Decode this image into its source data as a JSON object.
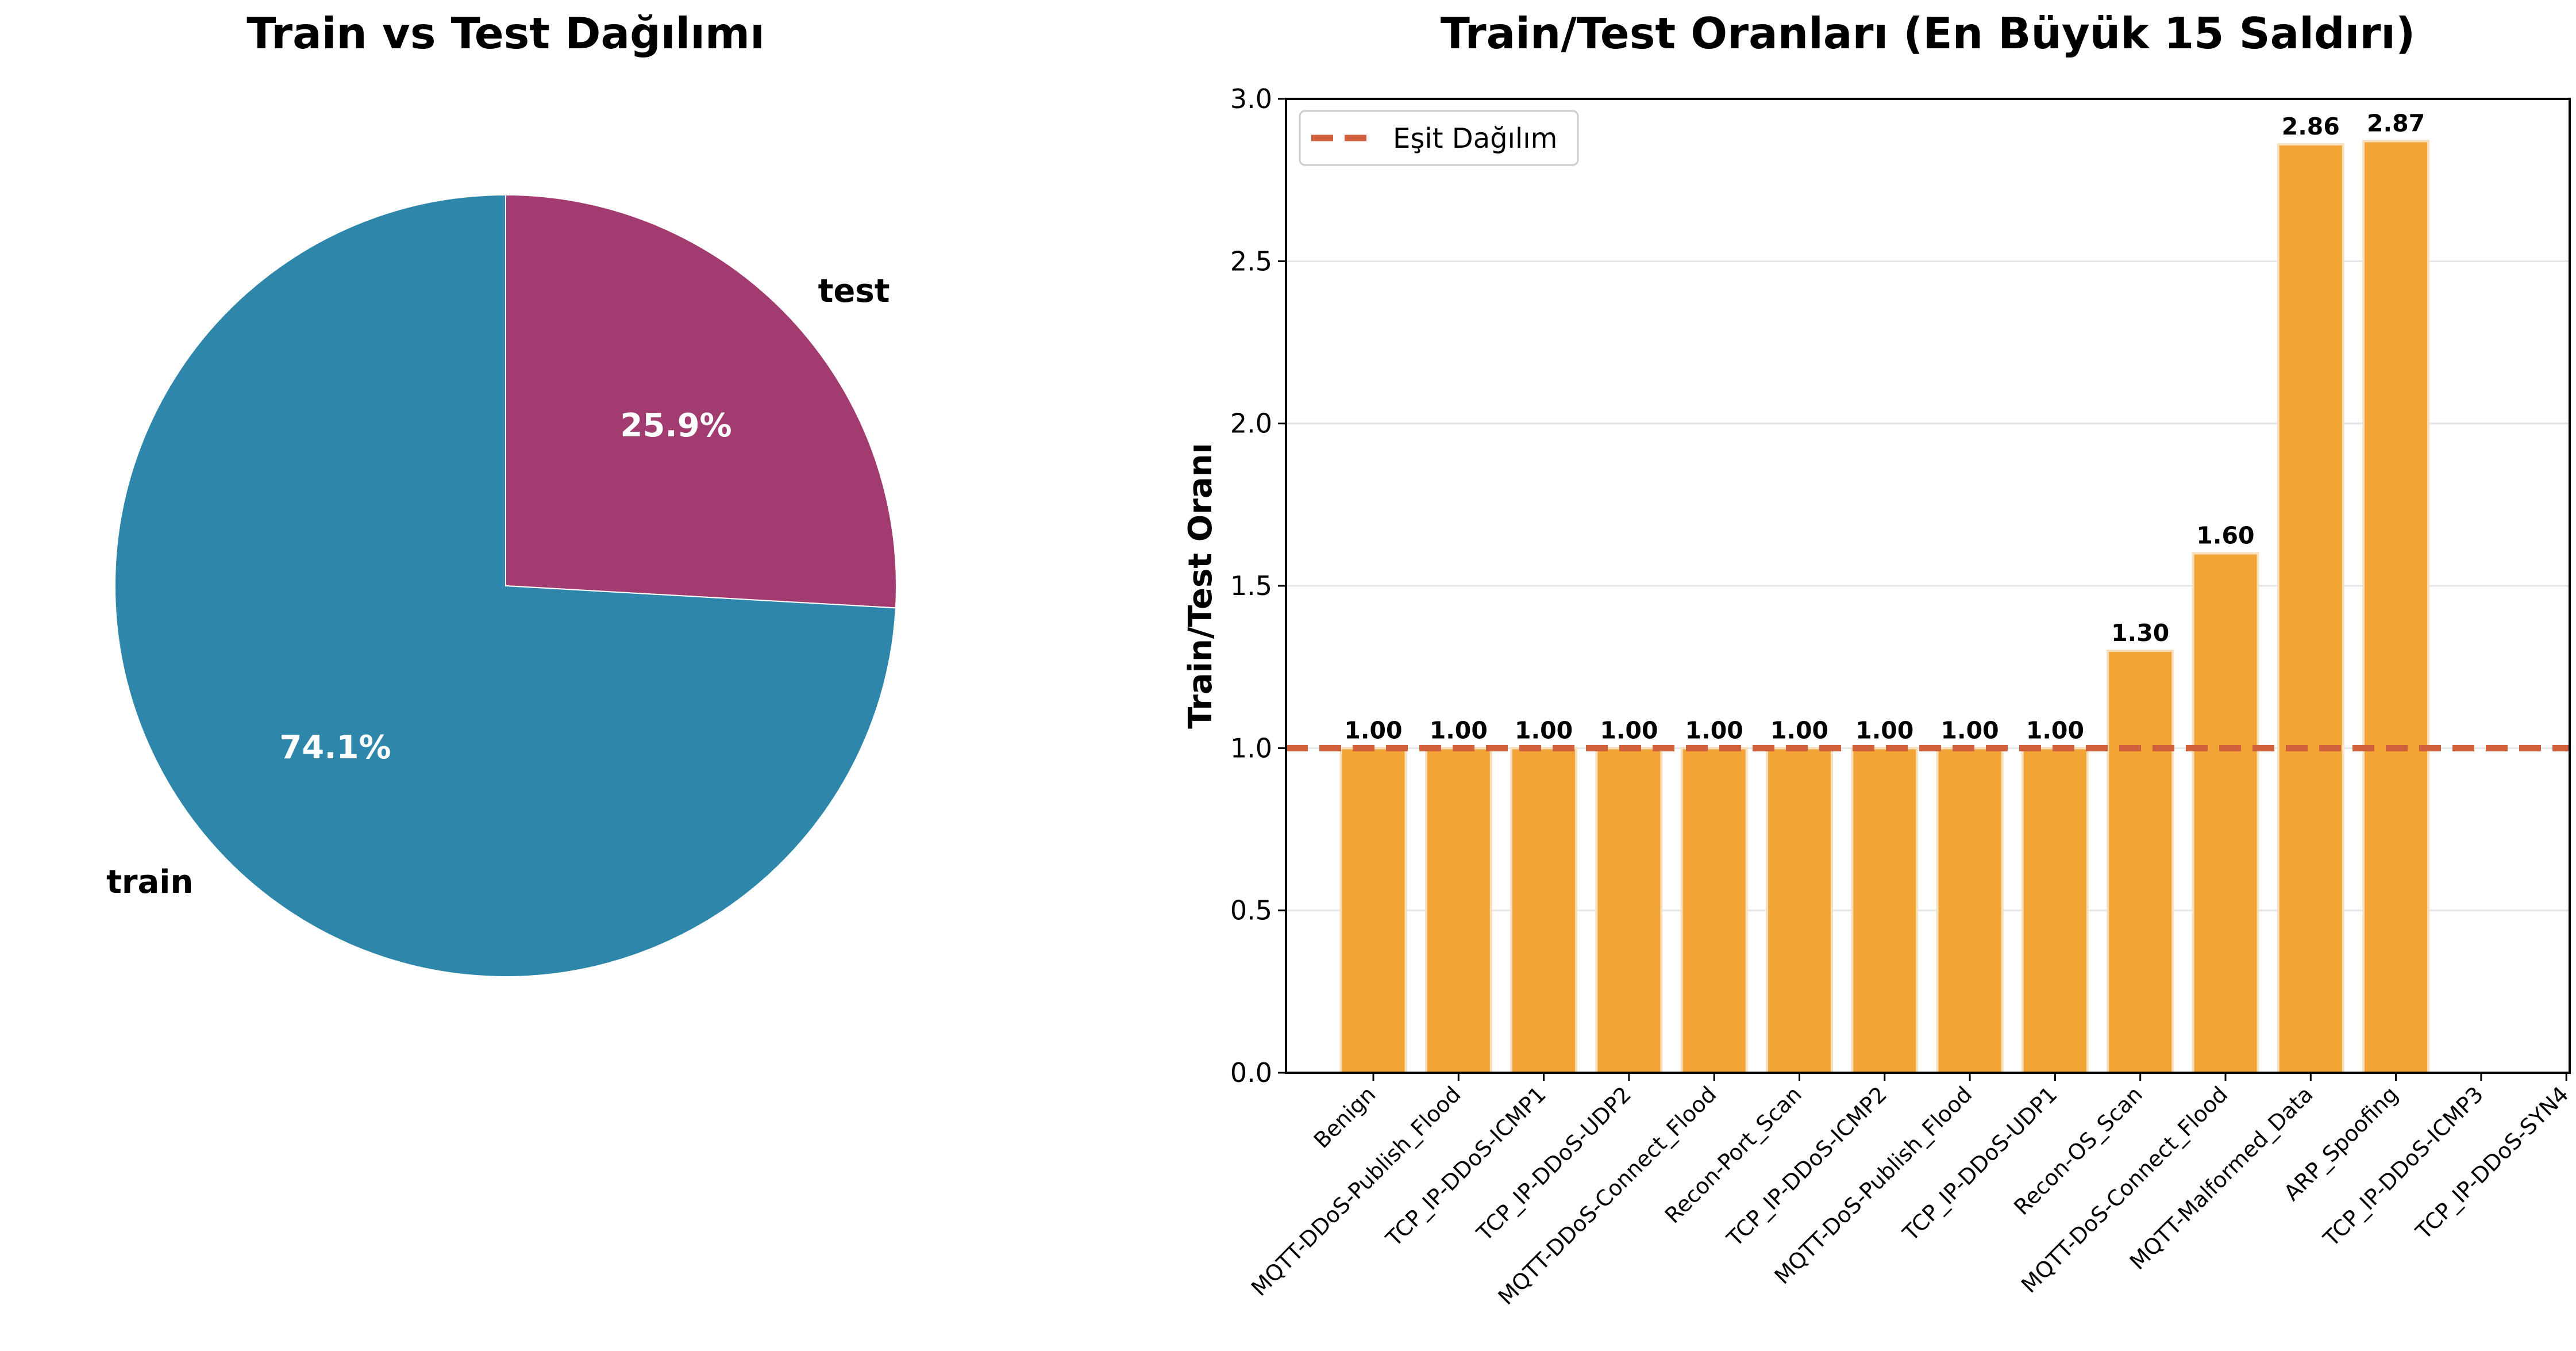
{
  "chart_data": [
    {
      "type": "pie",
      "title": "Train vs Test Dağılımı",
      "slices": [
        {
          "label": "test",
          "value": 25.9,
          "pct_label": "25.9%",
          "color": "#a23b6f"
        },
        {
          "label": "train",
          "value": 74.1,
          "pct_label": "74.1%",
          "color": "#2e86ab"
        }
      ]
    },
    {
      "type": "bar",
      "title": "Train/Test Oranları (En Büyük 15 Saldırı)",
      "xlabel": "",
      "ylabel": "Train/Test Oranı",
      "ylim": [
        0,
        3.0
      ],
      "yticks": [
        "0.0",
        "0.5",
        "1.0",
        "1.5",
        "2.0",
        "2.5",
        "3.0"
      ],
      "grid": "y",
      "bar_color": "#f2a535",
      "categories": [
        "Benign",
        "MQTT-DDoS-Publish_Flood",
        "TCP_IP-DDoS-ICMP1",
        "TCP_IP-DDoS-UDP2",
        "MQTT-DDoS-Connect_Flood",
        "Recon-Port_Scan",
        "TCP_IP-DDoS-ICMP2",
        "MQTT-DoS-Publish_Flood",
        "TCP_IP-DDoS-UDP1",
        "Recon-OS_Scan",
        "MQTT-DoS-Connect_Flood",
        "MQTT-Malformed_Data",
        "ARP_Spoofing",
        "TCP_IP-DDoS-ICMP3",
        "TCP_IP-DDoS-SYN4"
      ],
      "values": [
        1.0,
        1.0,
        1.0,
        1.0,
        1.0,
        1.0,
        1.0,
        1.0,
        1.0,
        1.3,
        1.6,
        2.86,
        2.87,
        null,
        null
      ],
      "value_labels": [
        "1.00",
        "1.00",
        "1.00",
        "1.00",
        "1.00",
        "1.00",
        "1.00",
        "1.00",
        "1.00",
        "1.30",
        "1.60",
        "2.86",
        "2.87",
        "",
        ""
      ],
      "reference_line": {
        "value": 1.0,
        "label": "Eşit Dağılım",
        "color": "#d1603d"
      },
      "legend_placement": "top-left"
    }
  ]
}
